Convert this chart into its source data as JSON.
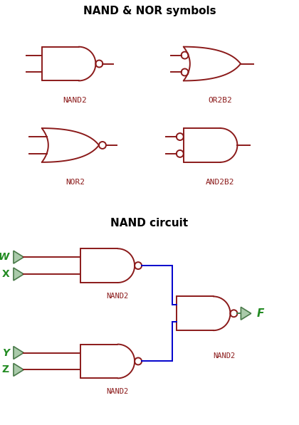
{
  "title1": "NAND & NOR symbols",
  "title2": "NAND circuit",
  "gate_color": "#8B1A1A",
  "green_color": "#4A7A4A",
  "blue_color": "#0000CC",
  "label_color": "#8B1A1A",
  "green_label_color": "#228B22",
  "bg_color": "#FFFFFF",
  "labels": {
    "nand2": "NAND2",
    "or2b2": "OR2B2",
    "nor2": "NOR2",
    "and2b2": "AND2B2"
  },
  "circuit_labels": {
    "w": "W",
    "x": "X",
    "y": "Y",
    "z": "Z",
    "f": "F",
    "nand2": "NAND2"
  }
}
